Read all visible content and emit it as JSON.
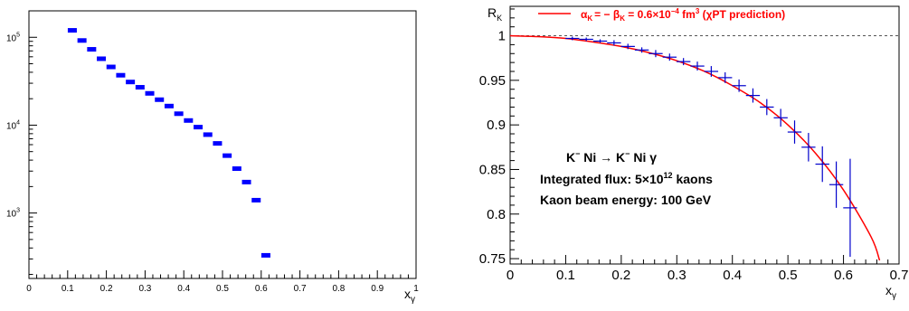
{
  "chart_data": [
    {
      "type": "scatter",
      "title": "",
      "xlabel_main": "x",
      "xlabel_sub": "γ",
      "ylabel": "",
      "xlim": [
        0,
        1
      ],
      "ylim": [
        180,
        200000
      ],
      "yscale": "log",
      "xticks": [
        0,
        0.1,
        0.2,
        0.3,
        0.4,
        0.5,
        0.6,
        0.7,
        0.8,
        0.9,
        1
      ],
      "xtick_labels": [
        "0",
        "0.1",
        "0.2",
        "0.3",
        "0.4",
        "0.5",
        "0.6",
        "0.7",
        "0.8",
        "0.9",
        "1"
      ],
      "ytick_labels": [
        {
          "value": 1000,
          "base": "10",
          "exp": "3"
        },
        {
          "value": 10000,
          "base": "10",
          "exp": "4"
        },
        {
          "value": 100000,
          "base": "10",
          "exp": "5"
        }
      ],
      "marker_color": "#0000ff",
      "x": [
        0.112,
        0.137,
        0.162,
        0.187,
        0.212,
        0.237,
        0.262,
        0.287,
        0.312,
        0.337,
        0.362,
        0.387,
        0.412,
        0.437,
        0.462,
        0.487,
        0.512,
        0.537,
        0.562,
        0.587,
        0.612
      ],
      "values": [
        120000,
        92000,
        73000,
        57000,
        46000,
        37000,
        31000,
        27000,
        23000,
        19500,
        16500,
        13500,
        11300,
        9500,
        7800,
        6200,
        4500,
        3200,
        2250,
        1400,
        330
      ]
    },
    {
      "type": "line",
      "title": "",
      "xlabel_main": "x",
      "xlabel_sub": "γ",
      "ylabel_main": "R",
      "ylabel_sub": "K",
      "xlim": [
        0,
        0.7
      ],
      "ylim": [
        0.744,
        1.033
      ],
      "xticks": [
        0,
        0.1,
        0.2,
        0.3,
        0.4,
        0.5,
        0.6,
        0.7
      ],
      "xtick_labels": [
        "0",
        "0.1",
        "0.2",
        "0.3",
        "0.4",
        "0.5",
        "0.6",
        "0.7"
      ],
      "yticks": [
        0.75,
        0.8,
        0.85,
        0.9,
        0.95,
        1
      ],
      "ytick_labels": [
        "0.75",
        "0.8",
        "0.85",
        "0.9",
        "0.95",
        "1"
      ],
      "reference_line_y": 1,
      "legend": {
        "position": "top-right",
        "parts": {
          "alpha": "α",
          "alpha_sub": "K",
          "mid": "= − β",
          "beta_sub": "K",
          "value": " = 0.6×10",
          "exp": "−4",
          "unit": " fm",
          "unit_exp": "3",
          "tail": " (χPT prediction)"
        },
        "color": "#ff0000"
      },
      "curve": {
        "color": "#ff0000",
        "x": [
          0,
          0.05,
          0.1,
          0.15,
          0.2,
          0.25,
          0.3,
          0.35,
          0.4,
          0.45,
          0.5,
          0.55,
          0.6,
          0.65,
          0.665
        ],
        "y": [
          1.0,
          0.999,
          0.997,
          0.993,
          0.988,
          0.981,
          0.972,
          0.96,
          0.944,
          0.925,
          0.9,
          0.868,
          0.827,
          0.774,
          0.748
        ]
      },
      "series": [
        {
          "color": "#0000cc",
          "x": [
            0.112,
            0.137,
            0.162,
            0.187,
            0.212,
            0.237,
            0.262,
            0.287,
            0.312,
            0.337,
            0.362,
            0.387,
            0.412,
            0.437,
            0.462,
            0.487,
            0.512,
            0.537,
            0.562,
            0.587,
            0.612
          ],
          "y": [
            0.997,
            0.996,
            0.994,
            0.992,
            0.988,
            0.984,
            0.98,
            0.976,
            0.971,
            0.966,
            0.96,
            0.953,
            0.944,
            0.933,
            0.92,
            0.908,
            0.892,
            0.875,
            0.856,
            0.833,
            0.807
          ],
          "xerr": 0.0125,
          "yerr": [
            0.002,
            0.002,
            0.002,
            0.003,
            0.003,
            0.003,
            0.004,
            0.004,
            0.004,
            0.005,
            0.006,
            0.006,
            0.007,
            0.008,
            0.009,
            0.01,
            0.013,
            0.016,
            0.02,
            0.026,
            0.055
          ]
        }
      ],
      "annotations": {
        "reaction": {
          "a": "K",
          "a_sup": "−",
          "b": " Ni  →  K",
          "b_sup": "−",
          "c": " Ni  γ"
        },
        "flux": {
          "pre": "Integrated flux: 5×10",
          "exp": "12",
          "post": " kaons"
        },
        "energy": "Kaon beam energy: 100 GeV"
      }
    }
  ]
}
